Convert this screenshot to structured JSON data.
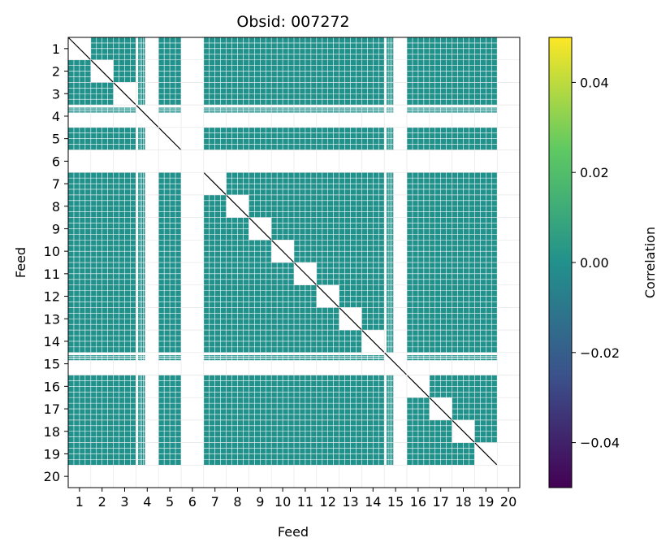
{
  "chart_data": {
    "type": "heatmap",
    "title": "Obsid: 007272",
    "xlabel": "Feed",
    "ylabel": "Feed",
    "x_ticks": [
      "1",
      "2",
      "3",
      "4",
      "5",
      "6",
      "7",
      "8",
      "9",
      "10",
      "11",
      "12",
      "13",
      "14",
      "15",
      "16",
      "17",
      "18",
      "19",
      "20"
    ],
    "y_ticks": [
      "1",
      "2",
      "3",
      "4",
      "5",
      "6",
      "7",
      "8",
      "9",
      "10",
      "11",
      "12",
      "13",
      "14",
      "15",
      "16",
      "17",
      "18",
      "19",
      "20"
    ],
    "feeds": 20,
    "valid_feeds": [
      1,
      2,
      3,
      5,
      7,
      8,
      9,
      10,
      11,
      12,
      13,
      14,
      16,
      17,
      18,
      19
    ],
    "partial_feeds": [
      4,
      15
    ],
    "empty_feeds": [
      6,
      20
    ],
    "value_range": [
      -0.05,
      0.05
    ],
    "offdiagonal_value": 0.0,
    "cell_color": "#21918c",
    "diagonal_color": "#000000",
    "colorbar": {
      "label": "Correlation",
      "ticks": [
        "0.04",
        "0.02",
        "0.00",
        "−0.02",
        "−0.04"
      ],
      "tick_values": [
        0.04,
        0.02,
        0.0,
        -0.02,
        -0.04
      ],
      "colors": [
        "#fde725",
        "#5ec962",
        "#21918c",
        "#3b528b",
        "#440154"
      ]
    }
  }
}
